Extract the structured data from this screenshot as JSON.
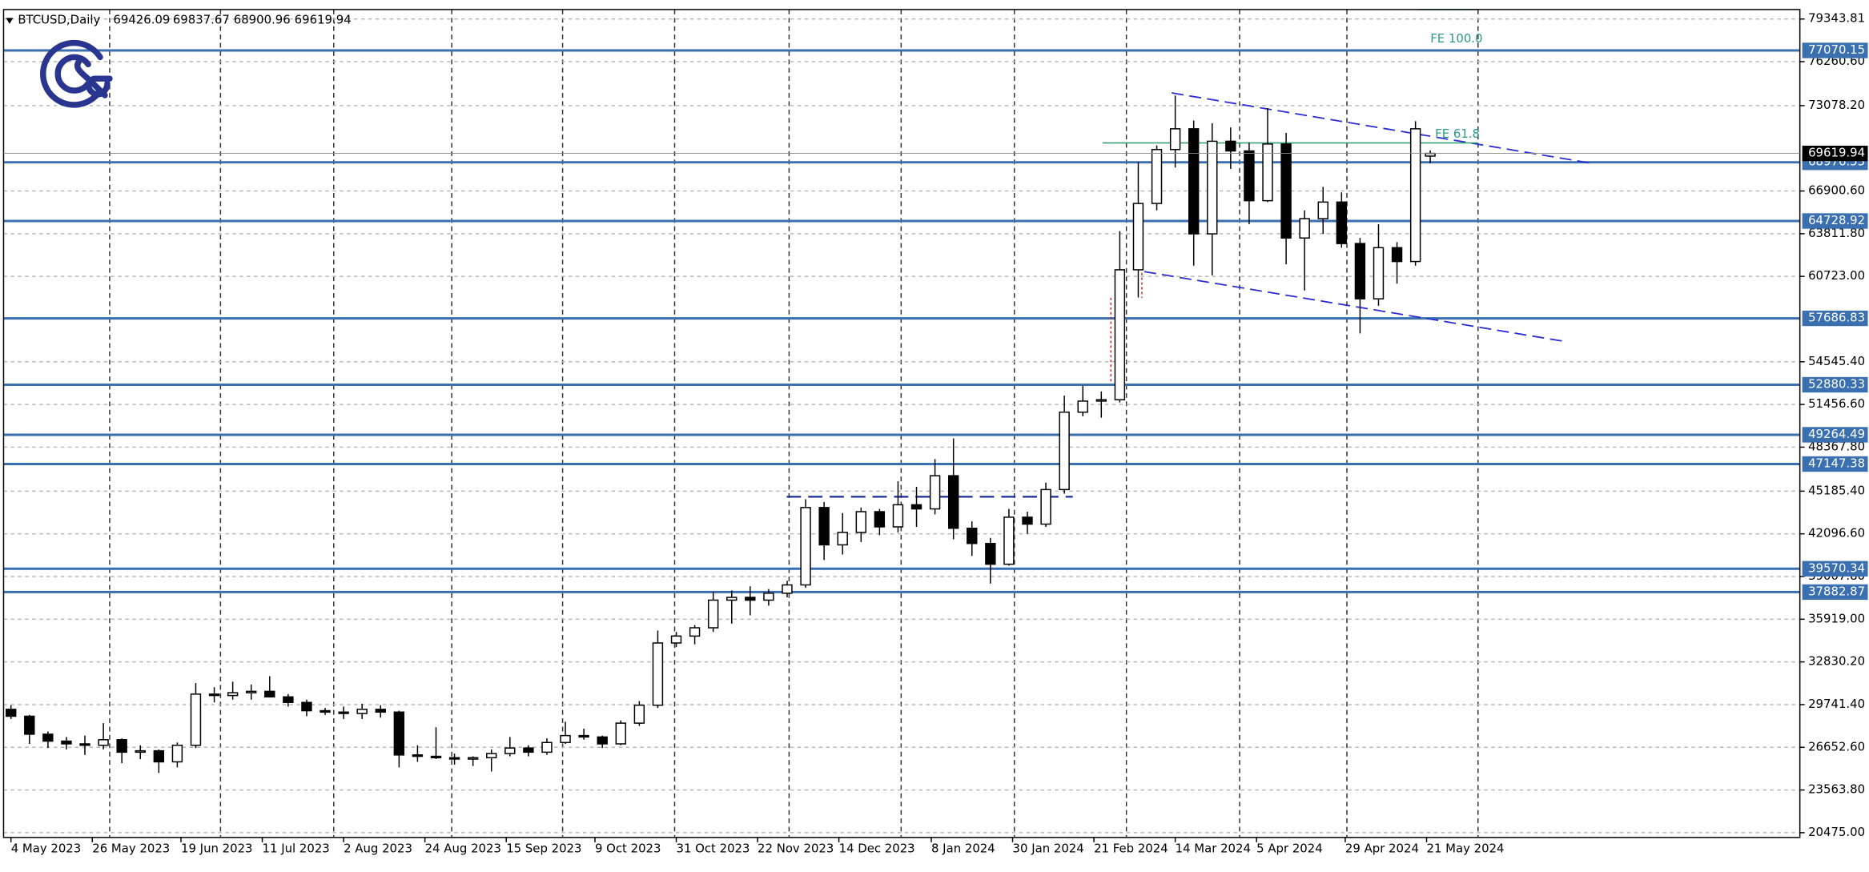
{
  "chart_data": {
    "type": "candlestick",
    "symbol": "BTCUSD,Daily",
    "x": [
      "2023-05-04",
      "2023-05-09",
      "2023-05-14",
      "2023-05-19",
      "2023-05-24",
      "2023-05-29",
      "2023-06-03",
      "2023-06-08",
      "2023-06-13",
      "2023-06-18",
      "2023-06-23",
      "2023-06-28",
      "2023-07-03",
      "2023-07-08",
      "2023-07-13",
      "2023-07-18",
      "2023-07-23",
      "2023-07-28",
      "2023-08-02",
      "2023-08-07",
      "2023-08-12",
      "2023-08-17",
      "2023-08-22",
      "2023-08-27",
      "2023-09-01",
      "2023-09-06",
      "2023-09-11",
      "2023-09-16",
      "2023-09-21",
      "2023-09-26",
      "2023-10-01",
      "2023-10-06",
      "2023-10-11",
      "2023-10-16",
      "2023-10-21",
      "2023-10-26",
      "2023-10-31",
      "2023-11-05",
      "2023-11-10",
      "2023-11-15",
      "2023-11-20",
      "2023-11-25",
      "2023-11-30",
      "2023-12-05",
      "2023-12-10",
      "2023-12-15",
      "2023-12-20",
      "2023-12-25",
      "2023-12-30",
      "2024-01-04",
      "2024-01-09",
      "2024-01-14",
      "2024-01-19",
      "2024-01-24",
      "2024-01-29",
      "2024-02-03",
      "2024-02-08",
      "2024-02-13",
      "2024-02-18",
      "2024-02-23",
      "2024-02-28",
      "2024-03-04",
      "2024-03-09",
      "2024-03-14",
      "2024-03-19",
      "2024-03-24",
      "2024-03-29",
      "2024-04-03",
      "2024-04-08",
      "2024-04-13",
      "2024-04-18",
      "2024-04-23",
      "2024-04-28",
      "2024-05-03",
      "2024-05-08",
      "2024-05-13",
      "2024-05-18",
      "2024-05-22"
    ],
    "open": [
      29400,
      28900,
      27600,
      27100,
      26900,
      26800,
      27200,
      26300,
      26400,
      25600,
      26800,
      30500,
      30400,
      30600,
      30700,
      30300,
      29900,
      29300,
      29200,
      29100,
      29400,
      29200,
      26100,
      26000,
      25900,
      25800,
      25900,
      26200,
      26600,
      26300,
      27000,
      27500,
      27400,
      26900,
      28400,
      29700,
      34200,
      34700,
      35300,
      37300,
      37500,
      37300,
      37800,
      38400,
      44000,
      41300,
      42200,
      43700,
      42600,
      44200,
      43900,
      46300,
      42500,
      41400,
      39900,
      43300,
      42800,
      45300,
      50900,
      51700,
      51800,
      61200,
      66000,
      69900,
      71400,
      63800,
      70500,
      69800,
      66200,
      70300,
      63500,
      64900,
      66100,
      63100,
      59100,
      62800,
      61800,
      69426.09
    ],
    "high": [
      29700,
      29000,
      27800,
      27400,
      27500,
      28400,
      27300,
      26800,
      26500,
      27000,
      31300,
      31000,
      31400,
      31200,
      31800,
      30500,
      30100,
      29500,
      29600,
      29800,
      29700,
      29300,
      26800,
      28100,
      26200,
      26000,
      26500,
      27400,
      26800,
      27300,
      28500,
      28000,
      27500,
      28600,
      30000,
      35100,
      35000,
      35500,
      37900,
      38000,
      38300,
      38100,
      38700,
      44600,
      44400,
      43600,
      44000,
      43900,
      45900,
      45500,
      47500,
      49000,
      43000,
      41800,
      43900,
      43700,
      45800,
      52100,
      52800,
      52400,
      64000,
      69000,
      70200,
      73800,
      72000,
      71800,
      71500,
      70400,
      72900,
      71100,
      65500,
      67200,
      66800,
      63500,
      64500,
      63200,
      71950,
      69837.67
    ],
    "low": [
      28700,
      26900,
      26600,
      26500,
      26100,
      26500,
      25500,
      25800,
      24800,
      25200,
      26600,
      29900,
      30100,
      30100,
      30300,
      29600,
      28900,
      29000,
      28700,
      28700,
      28800,
      25200,
      25600,
      25800,
      25400,
      25300,
      24900,
      26000,
      26000,
      26100,
      26900,
      27200,
      26600,
      26800,
      28200,
      29500,
      33900,
      34100,
      35000,
      35600,
      36200,
      36900,
      37500,
      38200,
      40200,
      40600,
      41500,
      42000,
      42200,
      42600,
      43500,
      41700,
      40500,
      38500,
      39800,
      42100,
      42600,
      45000,
      50600,
      50500,
      51600,
      59200,
      65500,
      68600,
      61500,
      60800,
      68500,
      64500,
      66100,
      61600,
      59700,
      63800,
      62800,
      56600,
      58600,
      60200,
      61500,
      68900.96
    ],
    "close": [
      28900,
      27600,
      27100,
      26900,
      26800,
      27200,
      26300,
      26400,
      25600,
      26800,
      30500,
      30400,
      30600,
      30700,
      30300,
      29900,
      29300,
      29200,
      29100,
      29400,
      29200,
      26100,
      26000,
      25900,
      25800,
      25900,
      26200,
      26600,
      26300,
      27000,
      27500,
      27400,
      26900,
      28400,
      29700,
      34200,
      34700,
      35300,
      37300,
      37500,
      37300,
      37800,
      38400,
      44000,
      41300,
      42200,
      43700,
      42600,
      44200,
      43900,
      46300,
      42500,
      41400,
      39900,
      43300,
      42800,
      45300,
      50900,
      51700,
      51800,
      61200,
      66000,
      69900,
      71400,
      63800,
      70500,
      69800,
      66200,
      70300,
      63500,
      64900,
      66100,
      63100,
      59100,
      62800,
      61800,
      71400,
      69619.94
    ],
    "up_color": "#ffffff",
    "down_color": "#000000",
    "xlim": [
      "2023-05-02",
      "2024-08-30"
    ],
    "xticks": [
      {
        "value": "2023-05-04",
        "label": "4 May 2023"
      },
      {
        "value": "2023-05-26",
        "label": "26 May 2023"
      },
      {
        "value": "2023-06-19",
        "label": "19 Jun 2023"
      },
      {
        "value": "2023-07-11",
        "label": "11 Jul 2023"
      },
      {
        "value": "2023-08-02",
        "label": "2 Aug 2023"
      },
      {
        "value": "2023-08-24",
        "label": "24 Aug 2023"
      },
      {
        "value": "2023-09-15",
        "label": "15 Sep 2023"
      },
      {
        "value": "2023-10-09",
        "label": "9 Oct 2023"
      },
      {
        "value": "2023-10-31",
        "label": "31 Oct 2023"
      },
      {
        "value": "2023-11-22",
        "label": "22 Nov 2023"
      },
      {
        "value": "2023-12-14",
        "label": "14 Dec 2023"
      },
      {
        "value": "2024-01-08",
        "label": "8 Jan 2024"
      },
      {
        "value": "2024-01-30",
        "label": "30 Jan 2024"
      },
      {
        "value": "2024-02-21",
        "label": "21 Feb 2024"
      },
      {
        "value": "2024-03-14",
        "label": "14 Mar 2024"
      },
      {
        "value": "2024-04-05",
        "label": "5 Apr 2024"
      },
      {
        "value": "2024-04-29",
        "label": "29 Apr 2024"
      },
      {
        "value": "2024-05-21",
        "label": "21 May 2024"
      }
    ],
    "ylim": [
      20130,
      80030
    ],
    "yticks": [
      79343.81,
      {
        "value": 76260.6,
        "label": "76260.60"
      },
      {
        "value": 73078.2,
        "label": "73078.20"
      },
      {
        "value": 66900.6,
        "label": "66900.60"
      },
      {
        "value": 63811.8,
        "label": "63811.80"
      },
      {
        "value": 60723,
        "label": "60723.00"
      },
      {
        "value": 54545.4,
        "label": "54545.40"
      },
      {
        "value": 51456.6,
        "label": "51456.60"
      },
      {
        "value": 48367.8,
        "label": "48367.80"
      },
      {
        "value": 45185.4,
        "label": "45185.40"
      },
      {
        "value": 42096.6,
        "label": "42096.60"
      },
      {
        "value": 39007.8,
        "label": "39007.80"
      },
      {
        "value": 35919,
        "label": "35919.00"
      },
      {
        "value": 32830.2,
        "label": "32830.20"
      },
      {
        "value": 29741.4,
        "label": "29741.40"
      },
      {
        "value": 26652.6,
        "label": "26652.60"
      },
      {
        "value": 23563.8,
        "label": "23563.80"
      },
      {
        "value": 20475,
        "label": "20475.00"
      }
    ],
    "grid": true,
    "levels": [
      77070.15,
      68976.53,
      64728.92,
      57686.83,
      52880.33,
      49264.49,
      47147.38,
      39570.34,
      37882.87
    ],
    "level_color": "#3a6fb0",
    "annotations": [
      "FE 100.0",
      "FE 61.8"
    ]
  }
}
